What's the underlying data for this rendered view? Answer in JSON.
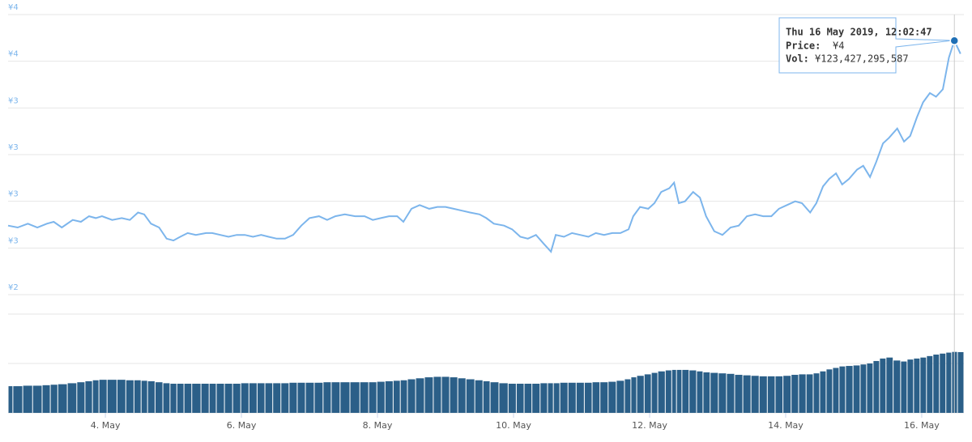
{
  "chart_data": {
    "type": "line",
    "x": [
      2.57,
      2.71,
      2.86,
      3.0,
      3.14,
      3.24,
      3.36,
      3.52,
      3.64,
      3.76,
      3.86,
      3.95,
      4.1,
      4.24,
      4.36,
      4.48,
      4.57,
      4.67,
      4.79,
      4.9,
      5.0,
      5.1,
      5.21,
      5.33,
      5.48,
      5.57,
      5.69,
      5.81,
      5.93,
      6.05,
      6.17,
      6.29,
      6.4,
      6.52,
      6.64,
      6.76,
      6.88,
      7.0,
      7.14,
      7.26,
      7.38,
      7.52,
      7.67,
      7.81,
      7.93,
      8.05,
      8.17,
      8.29,
      8.38,
      8.5,
      8.62,
      8.76,
      8.88,
      9.0,
      9.12,
      9.24,
      9.36,
      9.5,
      9.6,
      9.71,
      9.86,
      9.98,
      10.1,
      10.21,
      10.33,
      10.45,
      10.55,
      10.62,
      10.74,
      10.86,
      10.98,
      11.1,
      11.21,
      11.33,
      11.45,
      11.57,
      11.69,
      11.76,
      11.86,
      11.98,
      12.07,
      12.17,
      12.29,
      12.36,
      12.43,
      12.52,
      12.64,
      12.74,
      12.83,
      12.95,
      13.07,
      13.19,
      13.31,
      13.43,
      13.55,
      13.67,
      13.79,
      13.9,
      14.02,
      14.14,
      14.24,
      14.36,
      14.45,
      14.55,
      14.64,
      14.74,
      14.83,
      14.93,
      15.05,
      15.14,
      15.24,
      15.33,
      15.43,
      15.52,
      15.64,
      15.74,
      15.83,
      15.93,
      16.02,
      16.12,
      16.21,
      16.31,
      16.4,
      16.48,
      16.57
    ],
    "series": [
      {
        "name": "Price",
        "color": "#7cb5ec",
        "values": [
          2.62,
          2.61,
          2.63,
          2.61,
          2.63,
          2.64,
          2.61,
          2.65,
          2.64,
          2.67,
          2.66,
          2.67,
          2.65,
          2.66,
          2.65,
          2.69,
          2.68,
          2.63,
          2.61,
          2.55,
          2.54,
          2.56,
          2.58,
          2.57,
          2.58,
          2.58,
          2.57,
          2.56,
          2.57,
          2.57,
          2.56,
          2.57,
          2.56,
          2.55,
          2.55,
          2.57,
          2.62,
          2.66,
          2.67,
          2.65,
          2.67,
          2.68,
          2.67,
          2.67,
          2.65,
          2.66,
          2.67,
          2.67,
          2.64,
          2.71,
          2.73,
          2.71,
          2.72,
          2.72,
          2.71,
          2.7,
          2.69,
          2.68,
          2.66,
          2.63,
          2.62,
          2.6,
          2.56,
          2.55,
          2.57,
          2.52,
          2.48,
          2.57,
          2.56,
          2.58,
          2.57,
          2.56,
          2.58,
          2.57,
          2.58,
          2.58,
          2.6,
          2.67,
          2.72,
          2.71,
          2.74,
          2.8,
          2.82,
          2.85,
          2.74,
          2.75,
          2.8,
          2.77,
          2.67,
          2.59,
          2.57,
          2.61,
          2.62,
          2.67,
          2.68,
          2.67,
          2.67,
          2.71,
          2.73,
          2.75,
          2.74,
          2.69,
          2.74,
          2.83,
          2.87,
          2.9,
          2.84,
          2.87,
          2.92,
          2.94,
          2.88,
          2.96,
          3.06,
          3.09,
          3.14,
          3.07,
          3.1,
          3.2,
          3.28,
          3.33,
          3.31,
          3.35,
          3.52,
          3.61,
          3.54
        ]
      },
      {
        "name": "Vol",
        "color": "#2b5f88",
        "axis": "y2",
        "values": [
          54000000000.0,
          54000000000.0,
          55000000000.0,
          55000000000.0,
          56000000000.0,
          57000000000.0,
          58000000000.0,
          60000000000.0,
          62000000000.0,
          64000000000.0,
          66000000000.0,
          67000000000.0,
          67000000000.0,
          67000000000.0,
          66000000000.0,
          66000000000.0,
          65000000000.0,
          64000000000.0,
          62000000000.0,
          60000000000.0,
          59000000000.0,
          59000000000.0,
          59000000000.0,
          59000000000.0,
          59000000000.0,
          59000000000.0,
          59000000000.0,
          59000000000.0,
          59000000000.0,
          60000000000.0,
          60000000000.0,
          60000000000.0,
          60000000000.0,
          60000000000.0,
          60000000000.0,
          61000000000.0,
          61000000000.0,
          61000000000.0,
          61000000000.0,
          62000000000.0,
          62000000000.0,
          62000000000.0,
          62000000000.0,
          62000000000.0,
          62000000000.0,
          63000000000.0,
          64000000000.0,
          65000000000.0,
          66000000000.0,
          68000000000.0,
          70000000000.0,
          72000000000.0,
          73000000000.0,
          73000000000.0,
          72000000000.0,
          70000000000.0,
          68000000000.0,
          66000000000.0,
          64000000000.0,
          62000000000.0,
          60000000000.0,
          59000000000.0,
          59000000000.0,
          59000000000.0,
          59000000000.0,
          60000000000.0,
          60000000000.0,
          60000000000.0,
          61000000000.0,
          61000000000.0,
          61000000000.0,
          61000000000.0,
          62000000000.0,
          62000000000.0,
          63000000000.0,
          65000000000.0,
          68000000000.0,
          72000000000.0,
          75000000000.0,
          78000000000.0,
          81000000000.0,
          84000000000.0,
          86000000000.0,
          87000000000.0,
          87000000000.0,
          87000000000.0,
          86000000000.0,
          84000000000.0,
          82000000000.0,
          81000000000.0,
          80000000000.0,
          79000000000.0,
          77000000000.0,
          76000000000.0,
          75000000000.0,
          74000000000.0,
          74000000000.0,
          74000000000.0,
          75000000000.0,
          77000000000.0,
          78000000000.0,
          78000000000.0,
          80000000000.0,
          84000000000.0,
          88000000000.0,
          91000000000.0,
          94000000000.0,
          95000000000.0,
          96000000000.0,
          98000000000.0,
          100000000000.0,
          105000000000.0,
          110000000000.0,
          112000000000.0,
          106000000000.0,
          104000000000.0,
          108000000000.0,
          110000000000.0,
          112000000000.0,
          115000000000.0,
          118000000000.0,
          120000000000.0,
          122000000000.0,
          123427295587,
          123000000000.0
        ]
      }
    ],
    "xlim": [
      2.57,
      16.62
    ],
    "xticks": [
      {
        "value": 4,
        "label": "4. May"
      },
      {
        "value": 6,
        "label": "6. May"
      },
      {
        "value": 8,
        "label": "8. May"
      },
      {
        "value": 10,
        "label": "10. May"
      },
      {
        "value": 12,
        "label": "12. May"
      },
      {
        "value": 14,
        "label": "14. May"
      },
      {
        "value": 16,
        "label": "16. May"
      }
    ],
    "ylim": [
      2.25,
      3.75
    ],
    "yticks": [
      {
        "value": 2.25,
        "label": "¥2"
      },
      {
        "value": 2.5,
        "label": "¥3"
      },
      {
        "value": 2.75,
        "label": "¥3"
      },
      {
        "value": 3.0,
        "label": "¥3"
      },
      {
        "value": 3.25,
        "label": "¥3"
      },
      {
        "value": 3.5,
        "label": "¥4"
      },
      {
        "value": 3.75,
        "label": "¥4"
      }
    ],
    "y2lim": [
      0,
      200000000000
    ],
    "y2ticks": [
      0,
      100000000000,
      200000000000
    ],
    "grid": true,
    "tooltip": {
      "date": "Thu 16 May 2019, 12:02:47",
      "price_label": "Price:",
      "price": "¥4",
      "vol_label": "Vol:",
      "vol": "¥123,427,295,587"
    }
  }
}
